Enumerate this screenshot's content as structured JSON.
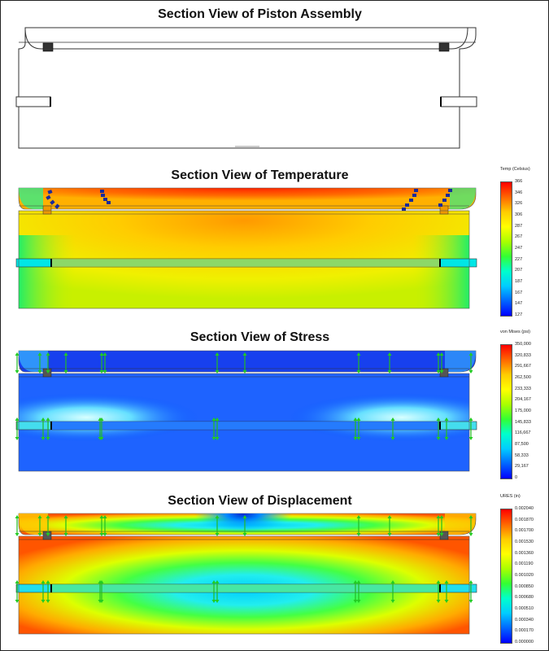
{
  "titles": {
    "assembly": "Section View of Piston Assembly",
    "temperature": "Section View of Temperature",
    "stress": "Section View of Stress",
    "displacement": "Section View of Displacement"
  },
  "legends": {
    "temperature": {
      "title": "Temp (Celsius)",
      "ticks": [
        "366",
        "346",
        "326",
        "306",
        "287",
        "267",
        "247",
        "227",
        "207",
        "187",
        "167",
        "147",
        "127"
      ]
    },
    "stress": {
      "title": "von Mises (psi)",
      "ticks": [
        "350,000",
        "320,833",
        "291,667",
        "262,500",
        "233,333",
        "204,167",
        "175,000",
        "145,833",
        "116,667",
        "87,500",
        "58,333",
        "29,167",
        "0"
      ]
    },
    "displacement": {
      "title": "URES (in)",
      "ticks": [
        "0.002040",
        "0.001870",
        "0.001700",
        "0.001530",
        "0.001360",
        "0.001190",
        "0.001020",
        "0.000850",
        "0.000680",
        "0.000510",
        "0.000340",
        "0.000170",
        "0.000000"
      ]
    }
  },
  "colors": {
    "scale": [
      "#ff0000",
      "#ff6600",
      "#ffcc00",
      "#ffff00",
      "#aaff00",
      "#33ff33",
      "#00ffcc",
      "#00ccff",
      "#0066ff",
      "#0000ff"
    ]
  }
}
